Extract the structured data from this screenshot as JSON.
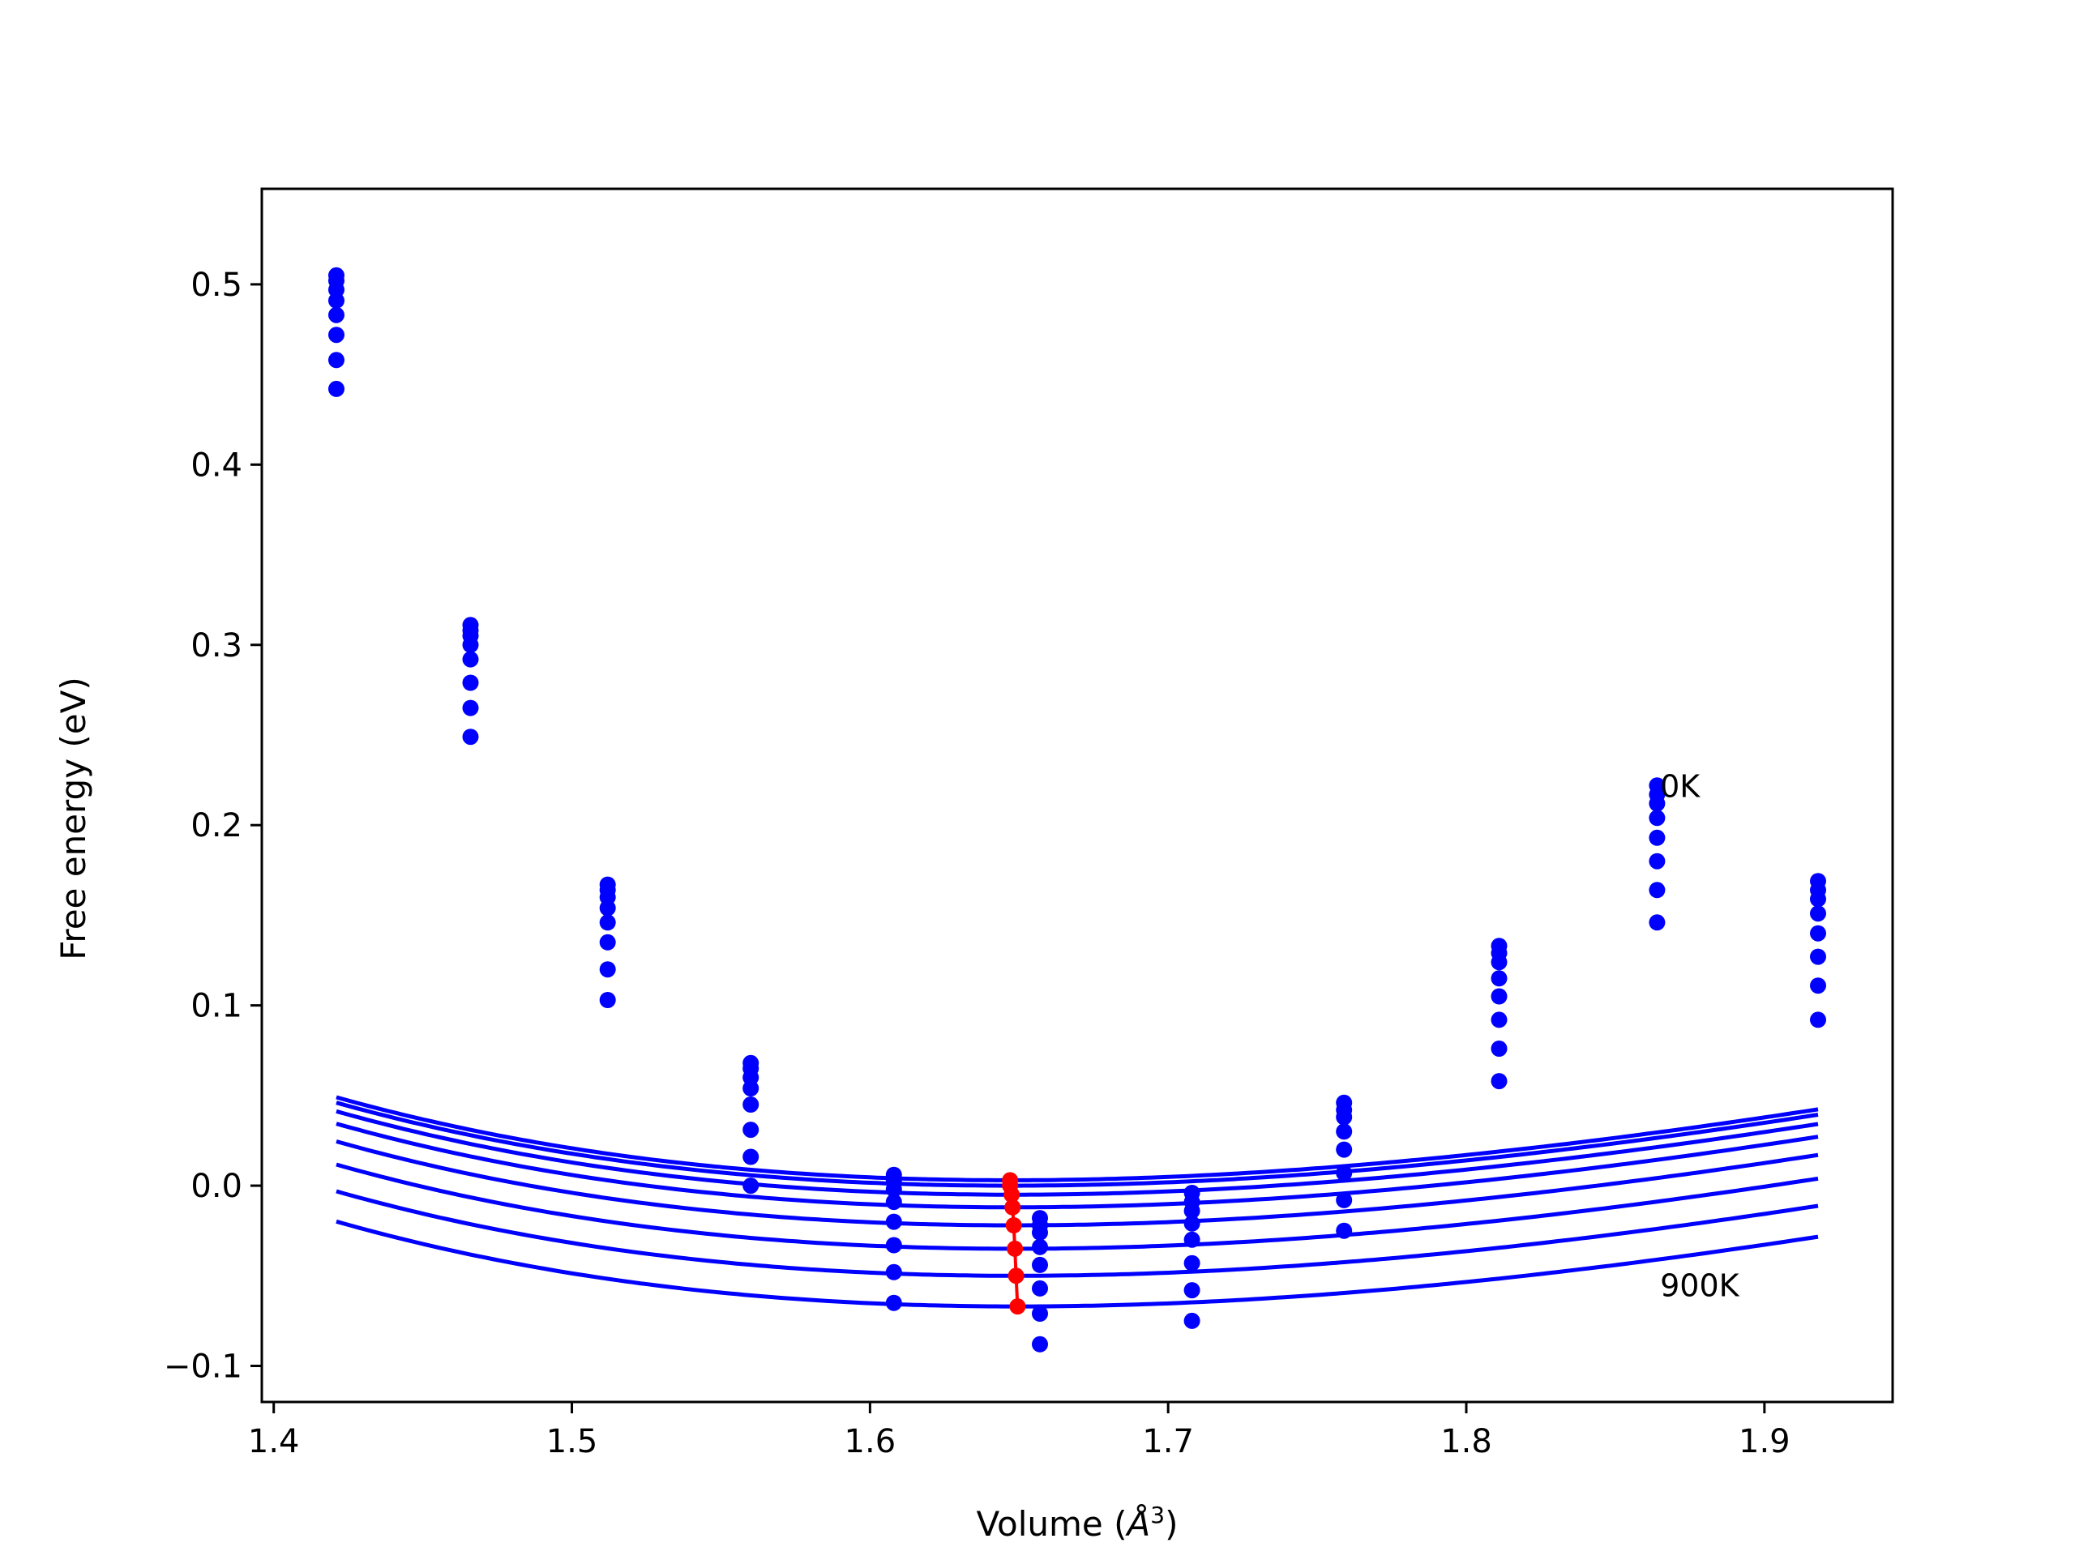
{
  "chart_data": {
    "type": "line",
    "title": "",
    "xlabel": "Volume (Å3)",
    "xlabel_parts": {
      "prefix": "Volume (",
      "italic": "Å",
      "sup": "3",
      "suffix": ")"
    },
    "ylabel": "Free energy (eV)",
    "xlim": [
      1.396,
      1.943
    ],
    "ylim": [
      -0.12,
      0.553
    ],
    "xticks": [
      1.4,
      1.5,
      1.6,
      1.7,
      1.8,
      1.9
    ],
    "xtick_labels": [
      "1.4",
      "1.5",
      "1.6",
      "1.7",
      "1.8",
      "1.9"
    ],
    "yticks": [
      -0.1,
      0.0,
      0.1,
      0.2,
      0.3,
      0.4,
      0.5
    ],
    "ytick_labels": [
      "−0.1",
      "0.0",
      "0.1",
      "0.2",
      "0.3",
      "0.4",
      "0.5"
    ],
    "grid": false,
    "legend": "none",
    "annotations": [
      {
        "text": "0K",
        "x": 1.865,
        "y": 0.222
      },
      {
        "text": "900K",
        "x": 1.865,
        "y": -0.055
      }
    ],
    "colors": {
      "curve": "#0000ff",
      "points": "#0000ff",
      "minima": "#ff0000"
    },
    "volumes": [
      1.421,
      1.466,
      1.512,
      1.56,
      1.608,
      1.657,
      1.708,
      1.759,
      1.811,
      1.864,
      1.918
    ],
    "curve_fit": {
      "x_start": 1.421,
      "x_end": 1.918,
      "B": 2.3,
      "Bp": 4.2
    },
    "series": [
      {
        "V0": 1.647,
        "E0": 0.003,
        "points": [
          0.505,
          0.311,
          0.167,
          0.068,
          0.006,
          -0.018,
          -0.004,
          0.046,
          0.133,
          0.222,
          0.169
        ]
      },
      {
        "V0": 1.647,
        "E0": 0.0,
        "points": [
          0.502,
          0.308,
          0.164,
          0.065,
          0.003,
          -0.022,
          -0.009,
          0.042,
          0.129,
          0.217,
          0.164
        ]
      },
      {
        "V0": 1.6475,
        "E0": -0.005,
        "points": [
          0.497,
          0.305,
          0.16,
          0.06,
          -0.002,
          -0.026,
          -0.014,
          0.038,
          0.124,
          0.212,
          0.159
        ]
      },
      {
        "V0": 1.6478,
        "E0": -0.012,
        "points": [
          0.491,
          0.3,
          0.154,
          0.054,
          -0.009,
          -0.034,
          -0.021,
          0.03,
          0.115,
          0.204,
          0.151
        ]
      },
      {
        "V0": 1.6482,
        "E0": -0.022,
        "points": [
          0.483,
          0.292,
          0.146,
          0.045,
          -0.02,
          -0.044,
          -0.03,
          0.02,
          0.105,
          0.193,
          0.14
        ]
      },
      {
        "V0": 1.6486,
        "E0": -0.035,
        "points": [
          0.472,
          0.279,
          0.135,
          0.031,
          -0.033,
          -0.057,
          -0.043,
          0.007,
          0.092,
          0.18,
          0.127
        ]
      },
      {
        "V0": 1.649,
        "E0": -0.05,
        "points": [
          0.458,
          0.265,
          0.12,
          0.016,
          -0.048,
          -0.071,
          -0.058,
          -0.008,
          0.076,
          0.164,
          0.111
        ]
      },
      {
        "V0": 1.6495,
        "E0": -0.067,
        "points": [
          0.442,
          0.249,
          0.103,
          0.0,
          -0.065,
          -0.088,
          -0.075,
          -0.025,
          0.058,
          0.146,
          0.092
        ]
      }
    ]
  }
}
